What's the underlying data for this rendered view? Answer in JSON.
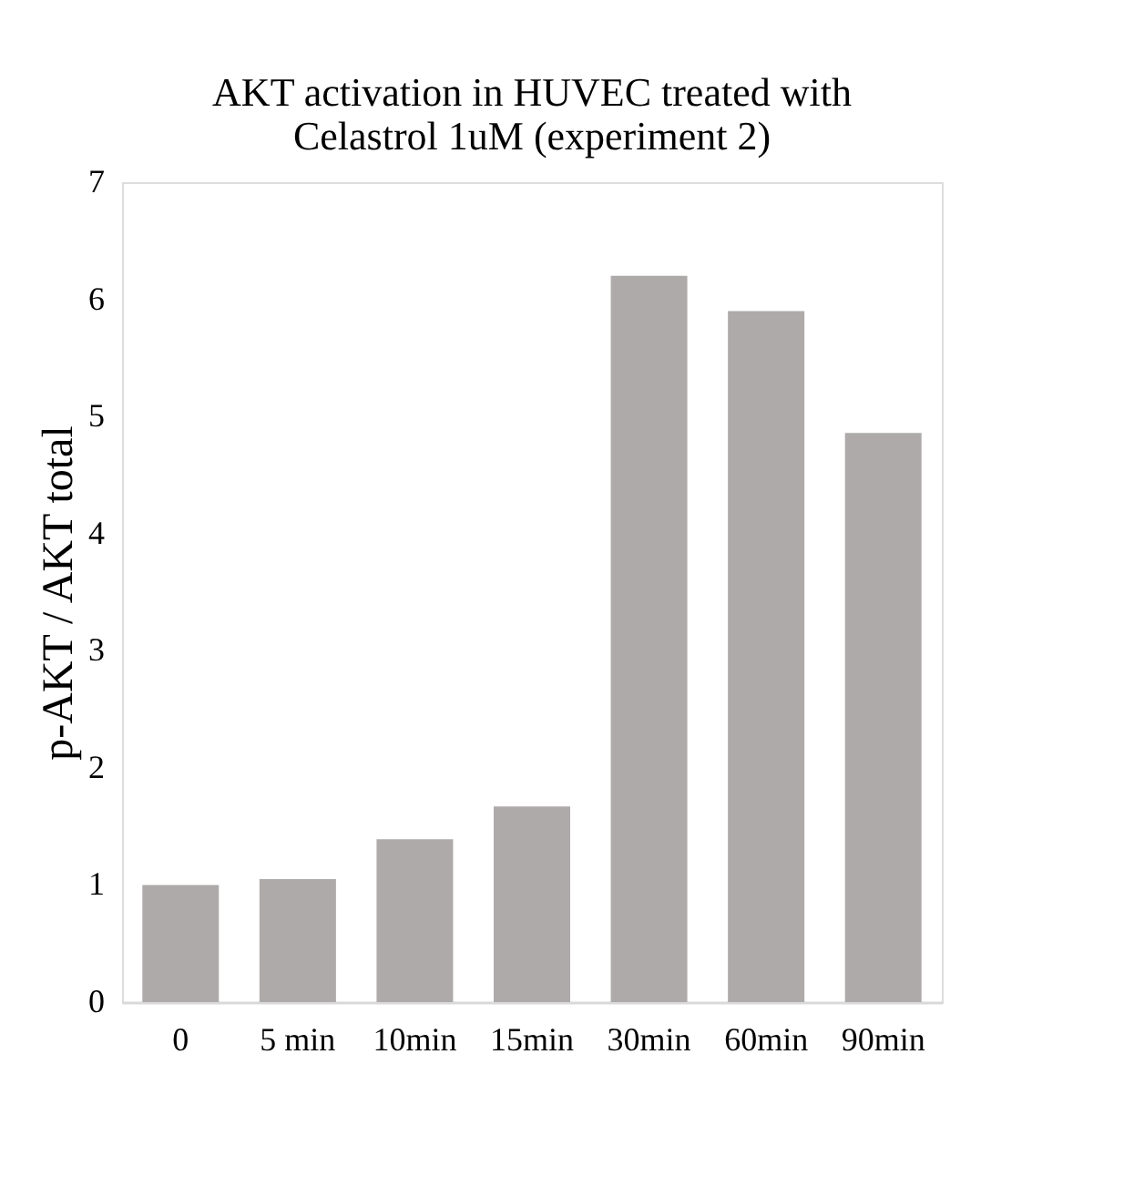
{
  "chart_data": {
    "type": "bar",
    "title": [
      "AKT activation in HUVEC treated with",
      "Celastrol 1uM (experiment 2)"
    ],
    "ylabel": "p-AKT / AKT total",
    "categories": [
      "0",
      "5 min",
      "10min",
      "15min",
      "30min",
      "60min",
      "90min"
    ],
    "values": [
      1.0,
      1.05,
      1.39,
      1.67,
      6.2,
      5.9,
      4.86
    ],
    "color": "#aeaaaa",
    "ylim": [
      0,
      7
    ],
    "yticks": [
      0,
      1,
      2,
      3,
      4,
      5,
      6,
      7
    ],
    "grid": false
  }
}
